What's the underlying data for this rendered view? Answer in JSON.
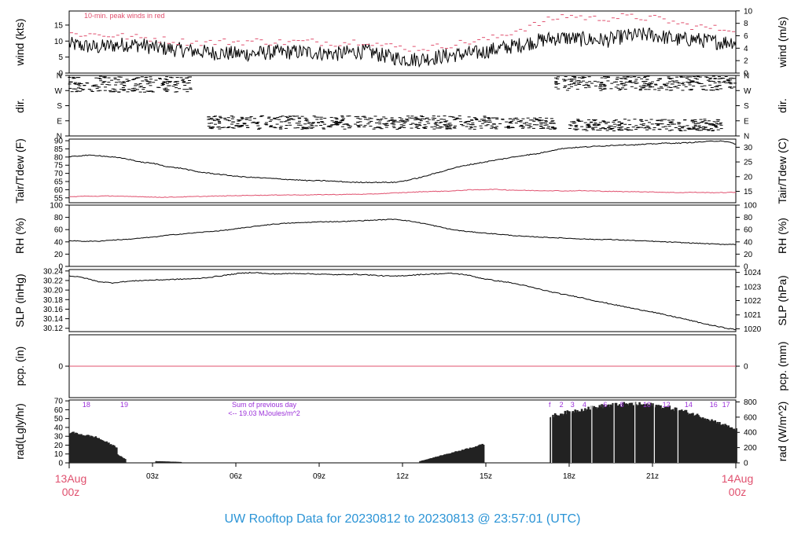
{
  "colors": {
    "accent_red": "#e0506e",
    "purple": "#9b30d9",
    "title_blue": "#2b94d6",
    "ink": "#000000"
  },
  "footer_title": "UW Rooftop Data for 20230812  to  20230813 @ 23:57:01  (UTC)",
  "time_axis": {
    "start_label": [
      "13Aug",
      "00z"
    ],
    "end_label": [
      "14Aug",
      "00z"
    ],
    "ticks": [
      {
        "h": 3,
        "label": "03z"
      },
      {
        "h": 6,
        "label": "06z"
      },
      {
        "h": 9,
        "label": "09z"
      },
      {
        "h": 12,
        "label": "12z"
      },
      {
        "h": 15,
        "label": "15z"
      },
      {
        "h": 18,
        "label": "18z"
      },
      {
        "h": 21,
        "label": "21z"
      }
    ],
    "range_hours": [
      0,
      24
    ]
  },
  "chart_data": [
    {
      "type": "line",
      "id": "wind",
      "ylabel": "wind (kts)",
      "ylabel_right": "wind (m/s)",
      "annotation": "10-min. peak winds in red",
      "ylim": [
        0,
        19.4
      ],
      "left_ticks": [
        0,
        5,
        10,
        15
      ],
      "right_ticks": [
        {
          "v": 0,
          "label": "0"
        },
        {
          "v": 3.89,
          "label": "2"
        },
        {
          "v": 7.78,
          "label": "4"
        },
        {
          "v": 11.66,
          "label": "6"
        },
        {
          "v": 15.55,
          "label": "8"
        },
        {
          "v": 19.44,
          "label": "10"
        }
      ],
      "series": [
        {
          "values_kts": [
            9,
            8.5,
            8,
            8.6,
            9,
            8.8,
            8,
            7.6,
            7.2,
            6.8,
            6.4,
            6.2,
            6,
            6.1,
            6.4,
            6.5,
            6.6,
            6.5,
            6.2,
            6,
            6.6,
            6.8,
            5.6,
            4.8,
            4.2,
            4.5,
            5,
            5.6,
            6,
            6.4,
            7.4,
            8.2,
            9,
            10,
            10.8,
            11,
            10.6,
            10.4,
            10.3,
            11.4,
            11.8,
            12,
            11.2,
            10.4,
            10.6,
            10,
            9.6,
            10
          ],
          "noise": 2.4
        },
        {
          "name": "10-min. peak winds in red",
          "values_kts": [
            12.2,
            12.2,
            12,
            11.8,
            11.4,
            11,
            10.8,
            10.2,
            9.8,
            9.6,
            9.6,
            9.8,
            9.8,
            10,
            9.8,
            9.6,
            9.8,
            9.8,
            9.6,
            9.4,
            9.8,
            10,
            8.8,
            8.2,
            7.8,
            7.8,
            8.2,
            9,
            9.6,
            10.2,
            11,
            12.5,
            14,
            15.2,
            16.8,
            18,
            17.6,
            17,
            17.2,
            17.6,
            17.4,
            17.2,
            16.6,
            15.4,
            14.6,
            14.2,
            13.8,
            14
          ]
        }
      ]
    },
    {
      "type": "scatter",
      "id": "dir",
      "ylabel": "dir.",
      "ylabel_right": "dir.",
      "ylim": [
        0,
        360
      ],
      "ticks": [
        {
          "v": 360,
          "label": "N"
        },
        {
          "v": 270,
          "label": "W"
        },
        {
          "v": 180,
          "label": "S"
        },
        {
          "v": 90,
          "label": "E"
        },
        {
          "v": 0,
          "label": "N"
        }
      ],
      "segments": [
        {
          "h": [
            0,
            4.5
          ],
          "deg": [
            260,
            355
          ]
        },
        {
          "h": [
            5,
            15
          ],
          "deg": [
            40,
            120
          ]
        },
        {
          "h": [
            15,
            17.5
          ],
          "deg": [
            40,
            110
          ]
        },
        {
          "h": [
            17.5,
            24
          ],
          "deg": [
            270,
            355
          ]
        },
        {
          "h": [
            18,
            23.5
          ],
          "deg": [
            30,
            100
          ]
        }
      ]
    },
    {
      "type": "line",
      "id": "temp",
      "ylabel": "Tair/Tdew (F)",
      "ylabel_right": "Tair/Tdew (C)",
      "ylim": [
        52,
        91
      ],
      "left_ticks": [
        55,
        60,
        65,
        70,
        75,
        80,
        85,
        90
      ],
      "right_ticks": [
        {
          "v": 59,
          "label": "15"
        },
        {
          "v": 68,
          "label": "20"
        },
        {
          "v": 77,
          "label": "25"
        },
        {
          "v": 86,
          "label": "30"
        }
      ],
      "series": [
        {
          "name": "Tair",
          "values": [
            80,
            81,
            81,
            80,
            79,
            77,
            76,
            74,
            73,
            71,
            70,
            69,
            68,
            67.5,
            67,
            66.5,
            66,
            65.5,
            65.5,
            65,
            64.5,
            64.5,
            64.5,
            64.5,
            66,
            68,
            70.5,
            73,
            75,
            76.5,
            78,
            79.5,
            81,
            82,
            84,
            85.5,
            86,
            86.5,
            87,
            87.5,
            87.5,
            88,
            88.5,
            88.5,
            89,
            89.5,
            90,
            88
          ],
          "noise": 0.3
        },
        {
          "name": "Tdew",
          "values": [
            55.6,
            56,
            56,
            56.2,
            55.8,
            55.8,
            55.4,
            55.4,
            55.6,
            55.8,
            56,
            56.2,
            56.4,
            56.6,
            56.6,
            56.8,
            56.8,
            56.8,
            57,
            57,
            57.2,
            57.2,
            57.6,
            58,
            58.4,
            58.8,
            59,
            59.2,
            59.8,
            60,
            60.2,
            59.8,
            59.6,
            59.4,
            59.4,
            59.2,
            59.4,
            59.2,
            59,
            58.8,
            58.8,
            58.6,
            58.4,
            58.2,
            58.4,
            58.2,
            58.2,
            58.4
          ],
          "noise": 0.2
        }
      ]
    },
    {
      "type": "line",
      "id": "rh",
      "ylabel": "RH (%)",
      "ylabel_right": "RH (%)",
      "ylim": [
        0,
        100
      ],
      "left_ticks": [
        0,
        20,
        40,
        60,
        80,
        100
      ],
      "right_ticks": [
        {
          "v": 0,
          "label": "0"
        },
        {
          "v": 20,
          "label": "20"
        },
        {
          "v": 40,
          "label": "40"
        },
        {
          "v": 60,
          "label": "60"
        },
        {
          "v": 80,
          "label": "80"
        },
        {
          "v": 100,
          "label": "100"
        }
      ],
      "series": [
        {
          "name": "RH",
          "values": [
            42,
            41,
            41,
            43,
            44,
            46,
            48,
            51,
            53,
            55,
            57,
            59,
            62,
            65,
            68,
            70,
            71,
            72,
            73,
            73,
            74,
            75,
            76,
            77,
            74,
            70,
            65,
            60,
            57,
            55,
            53,
            51,
            49,
            48,
            47,
            46,
            45,
            44,
            44,
            43,
            42,
            41,
            40,
            39,
            38,
            37,
            36,
            36
          ],
          "noise": 0.6
        }
      ]
    },
    {
      "type": "line",
      "id": "slp",
      "ylabel": "SLP (inHg)",
      "ylabel_right": "SLP (hPa)",
      "ylim": [
        30.113,
        30.243
      ],
      "left_ticks": [
        30.12,
        30.14,
        30.16,
        30.18,
        30.2,
        30.22,
        30.24
      ],
      "left_tick_labels": [
        "30.12",
        "30.14",
        "30.16",
        "30.18",
        "30.20",
        "30.22",
        "30.24"
      ],
      "right_ticks": [
        {
          "v": 30.119,
          "label": "1020"
        },
        {
          "v": 30.148,
          "label": "1021"
        },
        {
          "v": 30.178,
          "label": "1022"
        },
        {
          "v": 30.207,
          "label": "1023"
        },
        {
          "v": 30.237,
          "label": "1024"
        }
      ],
      "series": [
        {
          "name": "SLP",
          "values": [
            30.23,
            30.226,
            30.218,
            30.215,
            30.218,
            30.22,
            30.221,
            30.222,
            30.223,
            30.224,
            30.227,
            30.231,
            30.235,
            30.237,
            30.234,
            30.234,
            30.235,
            30.234,
            30.233,
            30.232,
            30.233,
            30.232,
            30.23,
            30.229,
            30.231,
            30.233,
            30.234,
            30.235,
            30.232,
            30.225,
            30.22,
            30.216,
            30.21,
            30.203,
            30.196,
            30.19,
            30.185,
            30.178,
            30.172,
            30.166,
            30.16,
            30.155,
            30.148,
            30.142,
            30.135,
            30.128,
            30.122,
            30.117
          ],
          "noise": 0.001
        }
      ]
    },
    {
      "type": "line",
      "id": "pcp",
      "ylabel": "pcp. (in)",
      "ylabel_right": "pcp. (mm)",
      "ylim": [
        -1,
        1
      ],
      "left_ticks": [
        {
          "v": 0,
          "label": "0"
        }
      ],
      "right_ticks": [
        {
          "v": 0,
          "label": "0"
        }
      ],
      "series": [
        {
          "name": "precip",
          "values": [
            0,
            0
          ]
        }
      ]
    },
    {
      "type": "bar",
      "id": "rad",
      "ylabel": "rad(Lgly/hr)",
      "ylabel_right": "rad (W/m^2)",
      "ylim": [
        0,
        71
      ],
      "left_ticks": [
        0,
        10,
        20,
        30,
        40,
        50,
        60,
        70
      ],
      "right_ticks": [
        {
          "v": 0,
          "label": "0"
        },
        {
          "v": 17.2,
          "label": "200"
        },
        {
          "v": 34.4,
          "label": "400"
        },
        {
          "v": 51.6,
          "label": "600"
        },
        {
          "v": 68.8,
          "label": "800"
        }
      ],
      "annotation_lines": [
        "Sum of previous day",
        "<-- 19.03 MJoules/m^2"
      ],
      "hour_labels": [
        {
          "h": 0.62,
          "label": "18"
        },
        {
          "h": 1.98,
          "label": "19"
        },
        {
          "h": 17.3,
          "label": "f"
        },
        {
          "h": 17.72,
          "label": "2"
        },
        {
          "h": 18.12,
          "label": "3"
        },
        {
          "h": 18.55,
          "label": "4"
        },
        {
          "h": 19.3,
          "label": "6"
        },
        {
          "h": 19.9,
          "label": "8"
        },
        {
          "h": 20.8,
          "label": "10"
        },
        {
          "h": 21.5,
          "label": "12"
        },
        {
          "h": 22.3,
          "label": "14"
        },
        {
          "h": 23.2,
          "label": "16"
        },
        {
          "h": 23.65,
          "label": "17"
        }
      ],
      "segments": [
        {
          "h": [
            0,
            0.95
          ],
          "v": [
            36,
            30
          ]
        },
        {
          "h": [
            0.95,
            1.7
          ],
          "v": [
            30,
            18
          ]
        },
        {
          "h": [
            1.7,
            2.0
          ],
          "v": [
            10,
            4
          ]
        },
        {
          "h": [
            3.1,
            4.0
          ],
          "v": [
            2,
            1
          ]
        },
        {
          "h": [
            12.6,
            14.9
          ],
          "v": [
            2,
            22
          ]
        },
        {
          "h": [
            17.3,
            20.3
          ],
          "v": [
            55,
            69
          ]
        },
        {
          "h": [
            20.3,
            24
          ],
          "v": [
            69,
            39
          ]
        }
      ]
    }
  ]
}
